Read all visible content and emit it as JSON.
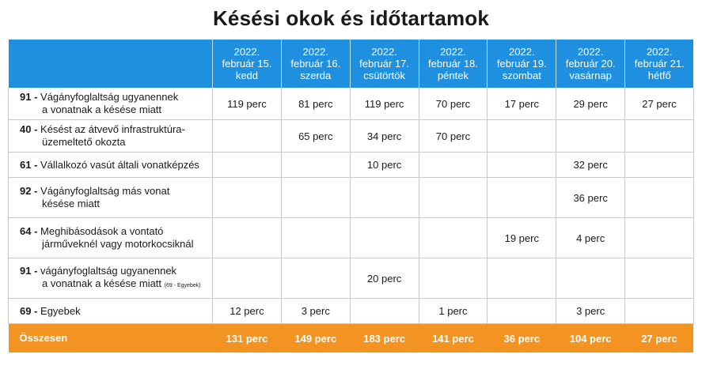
{
  "title": "Késési okok és időtartamok",
  "days": [
    {
      "year": "2022.",
      "date": "február 15.",
      "weekday": "kedd"
    },
    {
      "year": "2022.",
      "date": "február 16.",
      "weekday": "szerda"
    },
    {
      "year": "2022.",
      "date": "február 17.",
      "weekday": "csütörtök"
    },
    {
      "year": "2022.",
      "date": "február 18.",
      "weekday": "péntek"
    },
    {
      "year": "2022.",
      "date": "február 19.",
      "weekday": "szombat"
    },
    {
      "year": "2022.",
      "date": "február 20.",
      "weekday": "vasárnap"
    },
    {
      "year": "2022.",
      "date": "február 21.",
      "weekday": "hétfő"
    }
  ],
  "rows": [
    {
      "code": "91 -",
      "line1": "Vágányfoglaltság ugyanennek",
      "line2": "a vonatnak a késése miatt",
      "note": "",
      "values": [
        "119 perc",
        "81 perc",
        "119 perc",
        "70 perc",
        "17 perc",
        "29 perc",
        "27 perc"
      ]
    },
    {
      "code": "40 -",
      "line1": "Késést az átvevő infrastruktúra-",
      "line2": "üzemeltető okozta",
      "note": "",
      "values": [
        "",
        "65 perc",
        "34 perc",
        "70 perc",
        "",
        "",
        ""
      ]
    },
    {
      "code": "61 -",
      "line1": "Vállalkozó vasút általi vonatképzés",
      "line2": "",
      "note": "",
      "values": [
        "",
        "",
        "10 perc",
        "",
        "",
        "32 perc",
        ""
      ]
    },
    {
      "code": "92 -",
      "line1": "Vágányfoglaltság más vonat",
      "line2": "késése miatt",
      "note": "",
      "values": [
        "",
        "",
        "",
        "",
        "",
        "36 perc",
        ""
      ]
    },
    {
      "code": "64 -",
      "line1": "Meghibásodások a vontató",
      "line2": "járműveknél vagy motorkocsiknál",
      "note": "",
      "values": [
        "",
        "",
        "",
        "",
        "19 perc",
        "4 perc",
        ""
      ]
    },
    {
      "code": "91 -",
      "line1": "vágányfoglaltság ugyanennek",
      "line2": "a vonatnak a késése miatt",
      "note": "(69 - Egyebek)",
      "values": [
        "",
        "",
        "20 perc",
        "",
        "",
        "",
        ""
      ]
    },
    {
      "code": "69 -",
      "line1": "Egyebek",
      "line2": "",
      "note": "",
      "values": [
        "12 perc",
        "3 perc",
        "",
        "1 perc",
        "",
        "3 perc",
        ""
      ]
    }
  ],
  "total": {
    "label": "Összesen",
    "values": [
      "131 perc",
      "149 perc",
      "183 perc",
      "141 perc",
      "36 perc",
      "104 perc",
      "27 perc"
    ]
  },
  "colors": {
    "header_bg": "#1f8fe0",
    "total_bg": "#f39321"
  }
}
